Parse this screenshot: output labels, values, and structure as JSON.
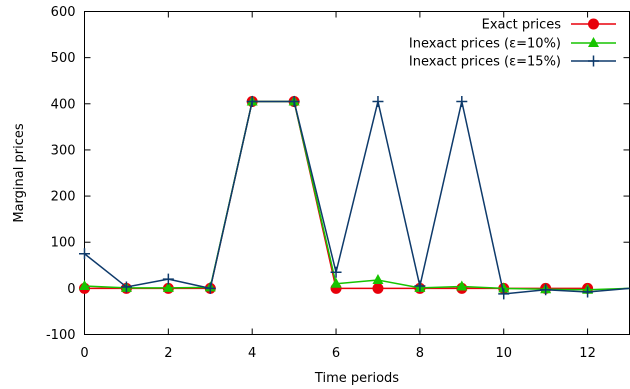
{
  "chart_data": {
    "type": "line",
    "xlabel": "Time periods",
    "ylabel": "Marginal prices",
    "xlim": [
      0,
      13
    ],
    "ylim": [
      -100,
      600
    ],
    "xticks": [
      0,
      2,
      4,
      6,
      8,
      10,
      12
    ],
    "yticks": [
      -100,
      0,
      100,
      200,
      300,
      400,
      500,
      600
    ],
    "grid": false,
    "legend_position": "top-right",
    "series": [
      {
        "name": "Exact prices",
        "color": "#e8000b",
        "marker": "circle",
        "x": [
          0,
          1,
          2,
          3,
          4,
          5,
          6,
          7,
          8,
          9,
          10,
          11,
          12
        ],
        "y": [
          0,
          0,
          0,
          0,
          405,
          405,
          0,
          0,
          0,
          0,
          0,
          0,
          0
        ]
      },
      {
        "name": "Inexact prices (ε=10%)",
        "color": "#17c400",
        "marker": "triangle",
        "x": [
          0,
          1,
          2,
          3,
          4,
          5,
          6,
          7,
          8,
          9,
          10,
          11,
          12,
          13
        ],
        "y": [
          5,
          1,
          1,
          2,
          405,
          405,
          10,
          18,
          1,
          4,
          0,
          -2,
          -3,
          0
        ]
      },
      {
        "name": "Inexact prices (ε=15%)",
        "color": "#0e3a6b",
        "marker": "plus",
        "x": [
          0,
          1,
          2,
          3,
          4,
          5,
          6,
          7,
          8,
          9,
          10,
          11,
          12,
          13
        ],
        "y": [
          75,
          3,
          20,
          0,
          405,
          405,
          35,
          405,
          5,
          405,
          -12,
          -3,
          -8,
          0
        ]
      }
    ]
  }
}
